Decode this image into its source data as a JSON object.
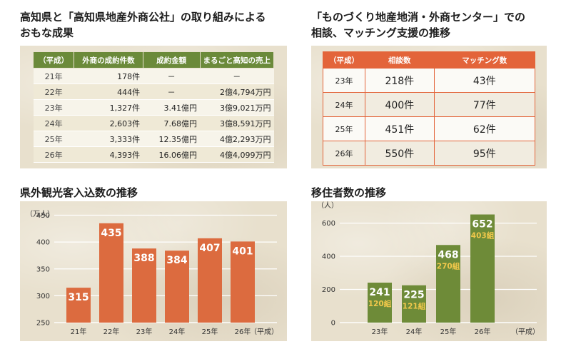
{
  "section1": {
    "title_line1": "高知県と「高知県地産外商公社」の取り組みによる",
    "title_line2": "おもな成果",
    "headers": [
      "（平成）",
      "外商の成約件数",
      "成約金額",
      "まるごと高知の売上"
    ],
    "rows": [
      [
        "21年",
        "178件",
        "－",
        "－"
      ],
      [
        "22年",
        "444件",
        "－",
        "2億4,794万円"
      ],
      [
        "23年",
        "1,327件",
        "3.41億円",
        "3億9,021万円"
      ],
      [
        "24年",
        "2,603件",
        "7.68億円",
        "3億8,591万円"
      ],
      [
        "25年",
        "3,333件",
        "12.35億円",
        "4億2,293万円"
      ],
      [
        "26年",
        "4,393件",
        "16.06億円",
        "4億4,099万円"
      ]
    ]
  },
  "section2": {
    "title_line1": "「ものづくり地産地消・外商センター」での",
    "title_line2": "相談、マッチング支援の推移",
    "headers": [
      "（平成）",
      "相談数",
      "マッチング数"
    ],
    "rows": [
      [
        "23年",
        "218件",
        "43件"
      ],
      [
        "24年",
        "400件",
        "77件"
      ],
      [
        "25年",
        "451件",
        "62件"
      ],
      [
        "26年",
        "550件",
        "95件"
      ]
    ]
  },
  "colors": {
    "panel": "#e8e0cd",
    "green_header": "#6b8a3a",
    "orange": "#e3643a",
    "tourism_bar": "#dc6b3f",
    "migration_bar": "#6e8b38",
    "households_text": "#f2c84b"
  },
  "chart_data": [
    {
      "type": "bar",
      "title": "県外観光客入込数の推移",
      "ylabel": "（万人）",
      "categories": [
        "21年",
        "22年",
        "23年",
        "24年",
        "25年",
        "26年"
      ],
      "x_suffix": "（平成）",
      "values": [
        315,
        435,
        388,
        384,
        407,
        401
      ],
      "value_labels": [
        "315",
        "435",
        "388",
        "384",
        "407",
        "401"
      ],
      "yticks": [
        "250",
        "300",
        "350",
        "400",
        "450"
      ],
      "ylim": [
        250,
        460
      ],
      "grid": true
    },
    {
      "type": "bar",
      "title": "移住者数の推移",
      "ylabel": "（人）",
      "categories": [
        "23年",
        "24年",
        "25年",
        "26年"
      ],
      "x_suffix": "（平成）",
      "values": [
        241,
        225,
        468,
        652
      ],
      "value_labels": [
        "241",
        "225",
        "468",
        "652"
      ],
      "households": [
        "120組",
        "121組",
        "270組",
        "403組"
      ],
      "yticks": [
        "0",
        "200",
        "400",
        "600"
      ],
      "ylim": [
        0,
        680
      ],
      "grid": true
    }
  ]
}
